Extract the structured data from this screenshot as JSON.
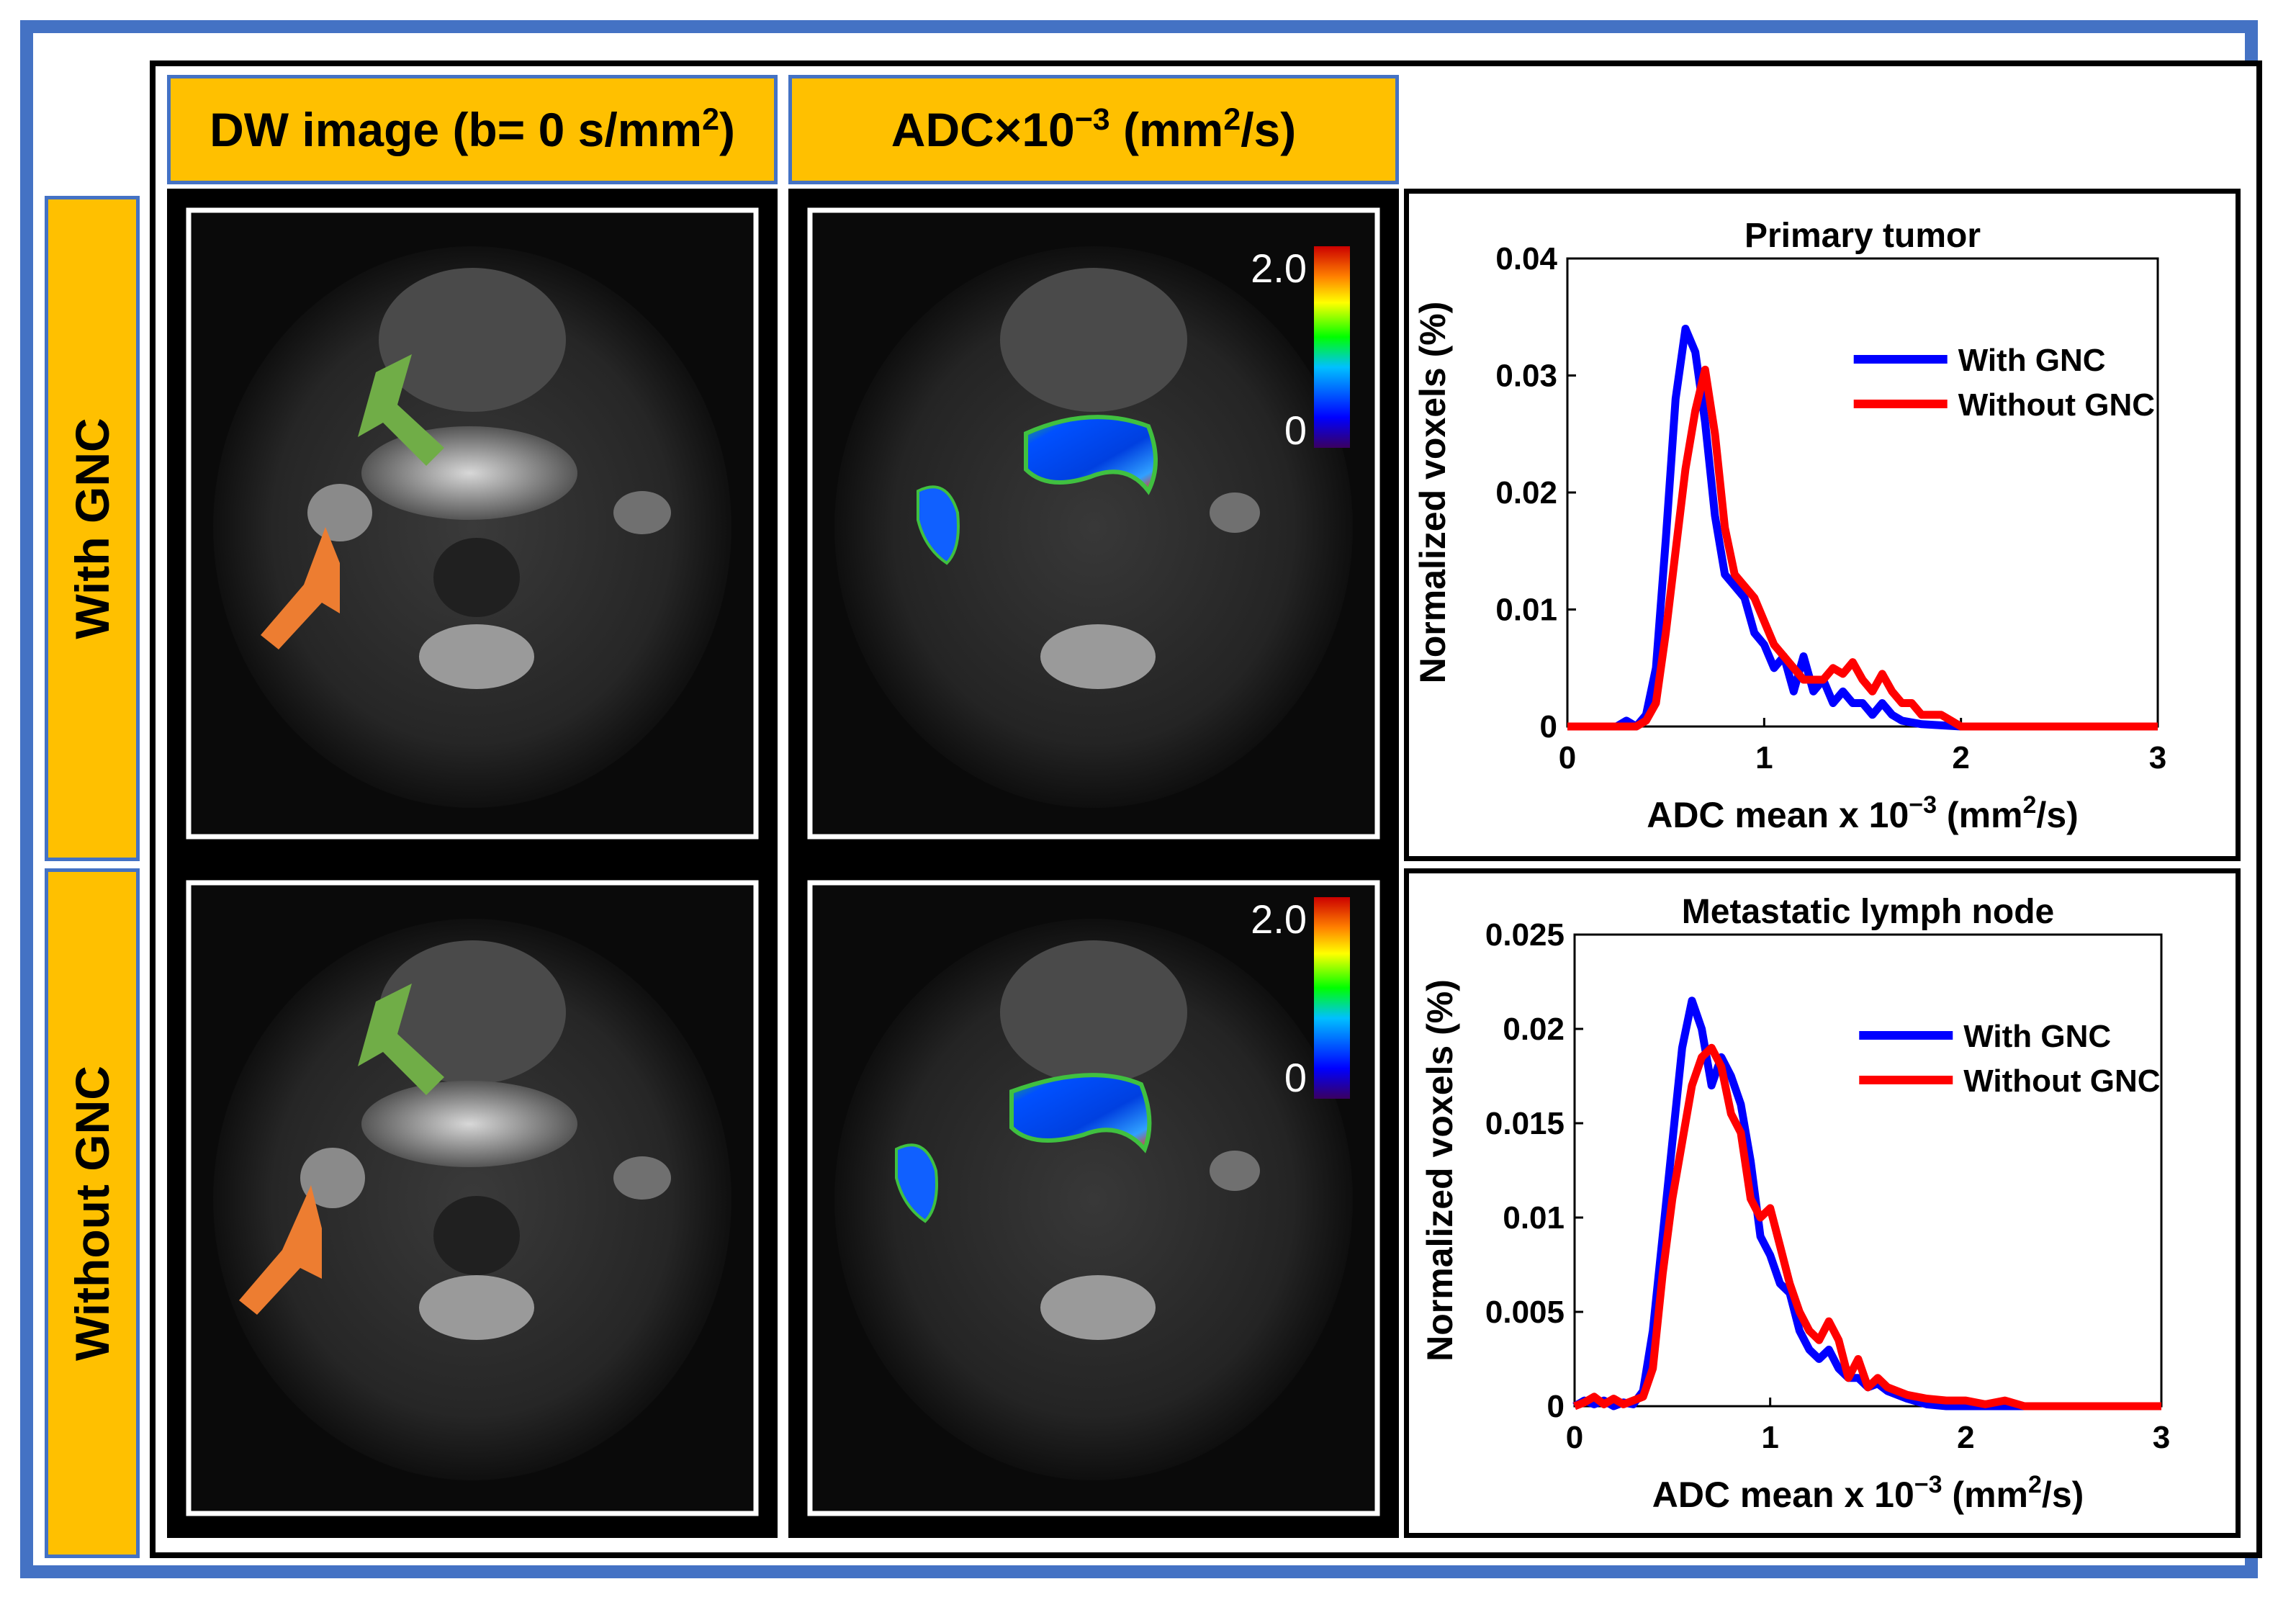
{
  "headers": {
    "dw_base": "DW image (b= 0 s/mm",
    "dw_sup": "2",
    "dw_close": ")",
    "adc_base": "ADC×10",
    "adc_sup": "−3",
    "adc_unit": " (mm",
    "adc_unit_sup": "2",
    "adc_close": "/s)"
  },
  "rows": {
    "top": "With GNC",
    "bottom": "Without GNC"
  },
  "colorbar": {
    "max_label": "2.0",
    "min_label": "0"
  },
  "colors": {
    "with": "#0000ff",
    "without": "#ff0000",
    "frame": "#4472c4",
    "header": "#ffc000",
    "green_arrow": "#70ad47",
    "orange_arrow": "#ed7d31"
  },
  "chart_data": [
    {
      "type": "line",
      "title": "Primary tumor",
      "xlabel": "ADC mean x 10",
      "xlabel_sup": "−3",
      "xlabel_unit": " (mm",
      "xlabel_unit_sup": "2",
      "xlabel_close": "/s)",
      "ylabel": "Normalized voxels (%)",
      "xlim": [
        0,
        3
      ],
      "ylim": [
        0,
        0.04
      ],
      "xticks": [
        "0",
        "1",
        "2",
        "3"
      ],
      "yticks": [
        "0",
        "0.01",
        "0.02",
        "0.03",
        "0.04"
      ],
      "legend": "top-right",
      "series": [
        {
          "name": "With GNC",
          "x": [
            0,
            0.25,
            0.3,
            0.35,
            0.4,
            0.45,
            0.5,
            0.55,
            0.6,
            0.65,
            0.7,
            0.75,
            0.8,
            0.85,
            0.9,
            0.95,
            1.0,
            1.05,
            1.1,
            1.15,
            1.2,
            1.25,
            1.3,
            1.35,
            1.4,
            1.45,
            1.5,
            1.55,
            1.6,
            1.65,
            1.7,
            1.8,
            1.9,
            2.0,
            3.0
          ],
          "values": [
            0,
            0,
            0.0005,
            0,
            0.001,
            0.005,
            0.016,
            0.028,
            0.034,
            0.032,
            0.026,
            0.018,
            0.013,
            0.012,
            0.011,
            0.008,
            0.007,
            0.005,
            0.006,
            0.003,
            0.006,
            0.003,
            0.004,
            0.002,
            0.003,
            0.002,
            0.002,
            0.001,
            0.002,
            0.001,
            0.0005,
            0.0002,
            0.0001,
            0,
            0
          ]
        },
        {
          "name": "Without GNC",
          "x": [
            0,
            0.35,
            0.4,
            0.45,
            0.5,
            0.55,
            0.6,
            0.65,
            0.7,
            0.75,
            0.8,
            0.85,
            0.9,
            0.95,
            1.0,
            1.05,
            1.1,
            1.15,
            1.2,
            1.25,
            1.3,
            1.35,
            1.4,
            1.45,
            1.5,
            1.55,
            1.6,
            1.65,
            1.7,
            1.75,
            1.8,
            1.85,
            1.9,
            1.95,
            2.0,
            3.0
          ],
          "values": [
            0,
            0,
            0.0005,
            0.002,
            0.008,
            0.015,
            0.022,
            0.027,
            0.0305,
            0.025,
            0.017,
            0.013,
            0.012,
            0.011,
            0.009,
            0.007,
            0.006,
            0.005,
            0.004,
            0.004,
            0.004,
            0.005,
            0.0045,
            0.0055,
            0.004,
            0.003,
            0.0045,
            0.003,
            0.002,
            0.002,
            0.001,
            0.001,
            0.001,
            0.0005,
            0,
            0
          ]
        }
      ]
    },
    {
      "type": "line",
      "title": "Metastatic lymph node",
      "xlabel": "ADC mean x 10",
      "xlabel_sup": "−3",
      "xlabel_unit": " (mm",
      "xlabel_unit_sup": "2",
      "xlabel_close": "/s)",
      "ylabel": "Normalized voxels (%)",
      "xlim": [
        0,
        3
      ],
      "ylim": [
        0,
        0.025
      ],
      "xticks": [
        "0",
        "1",
        "2",
        "3"
      ],
      "yticks": [
        "0",
        "0.005",
        "0.01",
        "0.015",
        "0.02",
        "0.025"
      ],
      "legend": "top-right",
      "series": [
        {
          "name": "With GNC",
          "x": [
            0,
            0.05,
            0.1,
            0.15,
            0.2,
            0.25,
            0.3,
            0.35,
            0.4,
            0.45,
            0.5,
            0.55,
            0.6,
            0.65,
            0.7,
            0.75,
            0.8,
            0.85,
            0.9,
            0.95,
            1.0,
            1.05,
            1.1,
            1.15,
            1.2,
            1.25,
            1.3,
            1.35,
            1.4,
            1.45,
            1.5,
            1.55,
            1.6,
            1.7,
            1.8,
            1.9,
            3.0
          ],
          "values": [
            0,
            0.0003,
            0.0001,
            0.0003,
            0,
            0.0002,
            0.0001,
            0.0008,
            0.004,
            0.009,
            0.014,
            0.019,
            0.0215,
            0.02,
            0.017,
            0.0185,
            0.0175,
            0.016,
            0.013,
            0.009,
            0.008,
            0.0065,
            0.006,
            0.004,
            0.003,
            0.0025,
            0.003,
            0.002,
            0.0015,
            0.0015,
            0.001,
            0.0012,
            0.0008,
            0.0004,
            0.0001,
            0,
            0
          ]
        },
        {
          "name": "Without GNC",
          "x": [
            0,
            0.05,
            0.1,
            0.15,
            0.2,
            0.25,
            0.3,
            0.35,
            0.4,
            0.45,
            0.5,
            0.55,
            0.6,
            0.65,
            0.7,
            0.75,
            0.8,
            0.85,
            0.9,
            0.95,
            1.0,
            1.05,
            1.1,
            1.15,
            1.2,
            1.25,
            1.3,
            1.35,
            1.4,
            1.45,
            1.5,
            1.55,
            1.6,
            1.7,
            1.8,
            1.9,
            2.0,
            2.1,
            2.2,
            2.3,
            3.0
          ],
          "values": [
            0,
            0.0002,
            0.0005,
            0.0001,
            0.0004,
            0.0001,
            0.0003,
            0.0005,
            0.002,
            0.007,
            0.011,
            0.014,
            0.017,
            0.0185,
            0.019,
            0.018,
            0.0155,
            0.0145,
            0.011,
            0.01,
            0.0105,
            0.0085,
            0.0065,
            0.005,
            0.004,
            0.0035,
            0.0045,
            0.0035,
            0.0015,
            0.0025,
            0.001,
            0.0015,
            0.001,
            0.0006,
            0.0004,
            0.0003,
            0.0003,
            0.0001,
            0.0003,
            0,
            0
          ]
        }
      ]
    }
  ]
}
